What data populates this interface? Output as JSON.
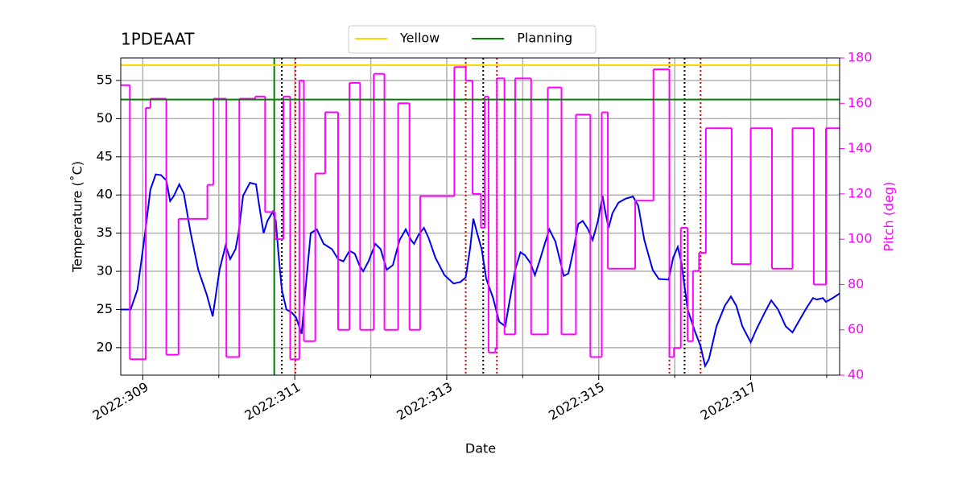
{
  "chart_data": {
    "type": "line",
    "title": "1PDEAAT",
    "xlabel": "Date",
    "ylabel": "Temperature (˚C)",
    "y2label": "Pitch (deg)",
    "xlim": [
      308.71,
      318.17
    ],
    "xticks": [
      {
        "value": 309,
        "label": "2022:309"
      },
      {
        "value": 311,
        "label": "2022:311"
      },
      {
        "value": 313,
        "label": "2022:313"
      },
      {
        "value": 315,
        "label": "2022:315"
      },
      {
        "value": 317,
        "label": "2022:317"
      }
    ],
    "xminorticks": [
      310,
      312,
      314,
      316,
      318
    ],
    "ylim": [
      16.4,
      57.95
    ],
    "yticks": [
      20,
      25,
      30,
      35,
      40,
      45,
      50,
      55
    ],
    "y2lim": [
      40,
      180
    ],
    "y2ticks": [
      40,
      60,
      80,
      100,
      120,
      140,
      160,
      180
    ],
    "y2color": "#ff00ff",
    "grid": true,
    "legend": "upper center",
    "hlines": [
      {
        "name": "Yellow",
        "color": "#ffd700",
        "value": 57
      },
      {
        "name": "Planning",
        "color": "#008000",
        "value": 52.5
      }
    ],
    "vlines": [
      {
        "x": 310.73,
        "color": "#008000",
        "style": "solid"
      },
      {
        "x": 310.83,
        "color": "#000000",
        "style": "dotted"
      },
      {
        "x": 313.48,
        "color": "#000000",
        "style": "dotted"
      },
      {
        "x": 316.13,
        "color": "#000000",
        "style": "dotted"
      },
      {
        "x": 311.01,
        "color": "#dd0000",
        "style": "dotted"
      },
      {
        "x": 313.25,
        "color": "#dd0000",
        "style": "dotted"
      },
      {
        "x": 313.66,
        "color": "#dd0000",
        "style": "dotted"
      },
      {
        "x": 315.93,
        "color": "#dd0000",
        "style": "dotted"
      },
      {
        "x": 316.34,
        "color": "#dd0000",
        "style": "dotted"
      }
    ],
    "series": [
      {
        "color": "#0000ee",
        "style": "line",
        "x": [
          308.71,
          308.84,
          308.93,
          309.03,
          309.1,
          309.17,
          309.24,
          309.31,
          309.36,
          309.41,
          309.48,
          309.54,
          309.63,
          309.73,
          309.84,
          309.92,
          310.01,
          310.09,
          310.15,
          310.22,
          310.26,
          310.32,
          310.41,
          310.49,
          310.54,
          310.59,
          310.64,
          310.71,
          310.75,
          310.79,
          310.83,
          310.89,
          310.96,
          311.02,
          311.09,
          311.15,
          311.21,
          311.29,
          311.38,
          311.49,
          311.57,
          311.64,
          311.72,
          311.79,
          311.85,
          311.9,
          311.97,
          312.06,
          312.13,
          312.21,
          312.29,
          312.38,
          312.46,
          312.53,
          312.57,
          312.63,
          312.7,
          312.76,
          312.85,
          312.97,
          313.09,
          313.18,
          313.25,
          313.31,
          313.35,
          313.4,
          313.46,
          313.52,
          313.61,
          313.69,
          313.77,
          313.82,
          313.9,
          313.97,
          314.03,
          314.1,
          314.16,
          314.22,
          314.29,
          314.35,
          314.43,
          314.54,
          314.6,
          314.67,
          314.73,
          314.79,
          314.86,
          314.92,
          314.99,
          315.05,
          315.09,
          315.13,
          315.18,
          315.26,
          315.35,
          315.45,
          315.52,
          315.6,
          315.71,
          315.79,
          315.92,
          315.98,
          316.04,
          316.09,
          316.17,
          316.26,
          316.34,
          316.4,
          316.45,
          316.55,
          316.66,
          316.74,
          316.81,
          316.89,
          317.0,
          317.08,
          317.19,
          317.27,
          317.36,
          317.46,
          317.55,
          317.63,
          317.74,
          317.82,
          317.87,
          317.95,
          317.99,
          318.08,
          318.17
        ],
        "values": [
          25.0,
          25.0,
          27.6,
          35.0,
          40.7,
          42.7,
          42.6,
          41.9,
          39.2,
          39.9,
          41.4,
          40.2,
          35.0,
          30.2,
          27.0,
          24.1,
          30.2,
          33.4,
          31.6,
          32.9,
          35.0,
          39.9,
          41.6,
          41.4,
          38.1,
          35.0,
          36.6,
          37.8,
          36.6,
          31.8,
          27.6,
          25.0,
          24.6,
          23.9,
          21.8,
          28.6,
          35.0,
          35.5,
          33.6,
          32.9,
          31.6,
          31.3,
          32.7,
          32.3,
          30.8,
          30.0,
          31.3,
          33.6,
          32.9,
          30.2,
          30.8,
          34.1,
          35.5,
          34.1,
          33.6,
          34.8,
          35.7,
          34.4,
          31.8,
          29.5,
          28.4,
          28.6,
          29.2,
          33.2,
          36.9,
          35.0,
          32.9,
          29.0,
          26.5,
          23.4,
          22.8,
          25.7,
          30.2,
          32.5,
          32.1,
          31.1,
          29.5,
          31.3,
          33.6,
          35.5,
          33.9,
          29.4,
          29.7,
          32.9,
          36.2,
          36.6,
          35.5,
          34.1,
          36.6,
          39.9,
          37.6,
          35.7,
          37.6,
          39.0,
          39.5,
          39.8,
          38.6,
          34.1,
          30.2,
          29.0,
          28.9,
          31.8,
          33.2,
          31.0,
          25.0,
          22.3,
          20.2,
          17.6,
          18.5,
          22.8,
          25.5,
          26.7,
          25.5,
          22.8,
          20.7,
          22.5,
          24.7,
          26.2,
          25.0,
          22.8,
          22.0,
          23.4,
          25.3,
          26.5,
          26.3,
          26.5,
          26.0,
          26.5,
          27.1
        ]
      },
      {
        "color": "#ff00ff",
        "style": "step",
        "axis": "y2",
        "x": [
          308.71,
          308.83,
          309.04,
          309.1,
          309.31,
          309.47,
          309.85,
          309.93,
          310.1,
          310.27,
          310.48,
          310.61,
          310.74,
          310.85,
          310.94,
          311.06,
          311.12,
          311.27,
          311.4,
          311.57,
          311.72,
          311.86,
          312.04,
          312.18,
          312.36,
          312.51,
          312.65,
          313.1,
          313.25,
          313.34,
          313.45,
          313.5,
          313.55,
          313.64,
          313.66,
          313.76,
          313.9,
          314.11,
          314.33,
          314.51,
          314.7,
          314.89,
          315.04,
          315.12,
          315.48,
          315.72,
          315.93,
          315.99,
          316.08,
          316.17,
          316.24,
          316.32,
          316.41,
          316.75,
          317.0,
          317.28,
          317.55,
          317.83,
          317.99
        ],
        "values": [
          168,
          47,
          158,
          162,
          49,
          109,
          124,
          162,
          48,
          162,
          163,
          112,
          100,
          163,
          47,
          170,
          55,
          129,
          156,
          60,
          169,
          60,
          173,
          60,
          160,
          60,
          119,
          176,
          170,
          120,
          105,
          163,
          50,
          52,
          171,
          58,
          171,
          58,
          167,
          58,
          155,
          48,
          156,
          87,
          117,
          175,
          48,
          52,
          105,
          55,
          86,
          94,
          149,
          89,
          149,
          87,
          149,
          80,
          149
        ]
      }
    ]
  }
}
